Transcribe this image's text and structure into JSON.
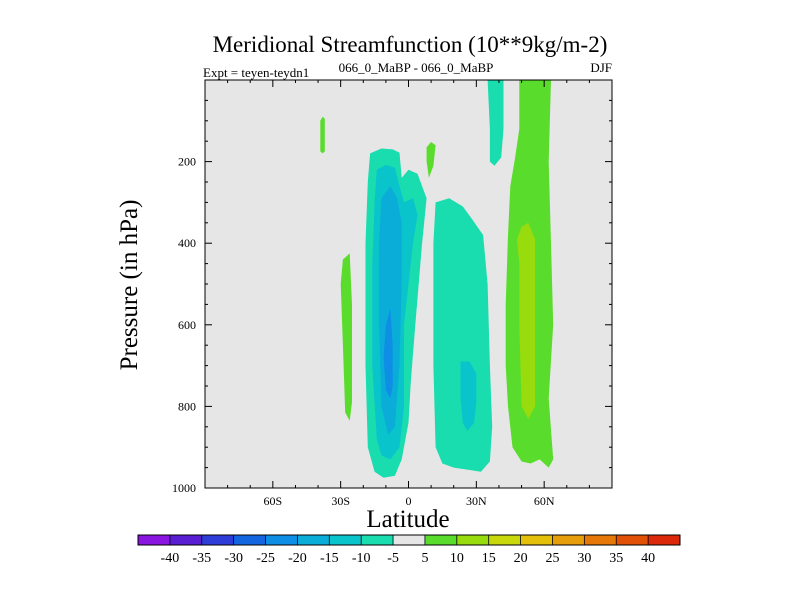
{
  "chart_data": {
    "type": "contour",
    "title": "Meridional Streamfunction (10**9kg/m-2)",
    "left_label": "Expt = teyen-teydn1",
    "center_label": "066_0_MaBP - 066_0_MaBP",
    "right_label": "DJF",
    "xlabel": "Latitude",
    "ylabel": "Pressure (in hPa)",
    "xlim": [
      -90,
      90
    ],
    "ylim": [
      1000,
      0
    ],
    "x_ticks": [
      {
        "value": -60,
        "label": "60S"
      },
      {
        "value": -30,
        "label": "30S"
      },
      {
        "value": 0,
        "label": "0"
      },
      {
        "value": 30,
        "label": "30N"
      },
      {
        "value": 60,
        "label": "60N"
      }
    ],
    "y_ticks": [
      {
        "value": 200,
        "label": "200"
      },
      {
        "value": 400,
        "label": "400"
      },
      {
        "value": 600,
        "label": "600"
      },
      {
        "value": 800,
        "label": "800"
      },
      {
        "value": 1000,
        "label": "1000"
      }
    ],
    "background_color": "#e6e6e6",
    "colorbar": {
      "labels": [
        "-40",
        "-35",
        "-30",
        "-25",
        "-20",
        "-15",
        "-10",
        "-5",
        "5",
        "10",
        "15",
        "20",
        "25",
        "30",
        "35",
        "40"
      ],
      "colors": [
        "#8a14e0",
        "#5a1ed2",
        "#2f3dd8",
        "#1466e0",
        "#0f8ee6",
        "#0aadd8",
        "#0ac4cc",
        "#19dcaf",
        "#e6e6e6",
        "#5adc2d",
        "#98dc0e",
        "#c8d80a",
        "#e4c00a",
        "#e69e0a",
        "#e6780a",
        "#e25008",
        "#dc280a"
      ]
    },
    "regions": [
      {
        "name": "sh-upper-green-blob",
        "level": "5",
        "color": "#5adc2d",
        "points": [
          [
            -38,
            90
          ],
          [
            -37,
            95
          ],
          [
            -37,
            175
          ],
          [
            -38,
            180
          ],
          [
            -39,
            175
          ],
          [
            -39,
            100
          ]
        ]
      },
      {
        "name": "sh-midlevel-green-band",
        "level": "5",
        "color": "#5adc2d",
        "points": [
          [
            -29,
            440
          ],
          [
            -26,
            425
          ],
          [
            -25,
            550
          ],
          [
            -25,
            790
          ],
          [
            -26,
            835
          ],
          [
            -28,
            815
          ],
          [
            -29,
            650
          ],
          [
            -30,
            500
          ]
        ]
      },
      {
        "name": "tropical-upper-green-blob",
        "level": "5",
        "color": "#5adc2d",
        "points": [
          [
            10,
            152
          ],
          [
            12,
            160
          ],
          [
            11,
            210
          ],
          [
            9,
            240
          ],
          [
            8,
            200
          ],
          [
            8,
            165
          ]
        ]
      },
      {
        "name": "nh-descending-green-cell",
        "level": "5",
        "color": "#5adc2d",
        "points": [
          [
            42,
            0
          ],
          [
            49,
            0
          ],
          [
            49,
            120
          ],
          [
            47,
            195
          ],
          [
            45,
            260
          ],
          [
            44,
            380
          ],
          [
            43,
            550
          ],
          [
            43,
            700
          ],
          [
            44,
            800
          ],
          [
            46,
            900
          ],
          [
            50,
            935
          ],
          [
            54,
            940
          ],
          [
            58,
            930
          ],
          [
            62,
            950
          ],
          [
            64,
            930
          ],
          [
            62,
            780
          ],
          [
            64,
            600
          ],
          [
            63,
            400
          ],
          [
            62,
            200
          ],
          [
            63,
            0
          ],
          [
            64,
            0
          ],
          [
            64,
            0
          ]
        ]
      },
      {
        "name": "nh-descending-core",
        "level": "10",
        "color": "#98dc0e",
        "points": [
          [
            48,
            390
          ],
          [
            50,
            360
          ],
          [
            53,
            350
          ],
          [
            56,
            390
          ],
          [
            56,
            600
          ],
          [
            56,
            800
          ],
          [
            53,
            830
          ],
          [
            50,
            800
          ],
          [
            49,
            600
          ],
          [
            49,
            450
          ]
        ]
      },
      {
        "name": "nh-upper-teal-strip",
        "level": "-5",
        "color": "#19dcaf",
        "points": [
          [
            35,
            0
          ],
          [
            42,
            0
          ],
          [
            42,
            120
          ],
          [
            41,
            190
          ],
          [
            38,
            210
          ],
          [
            36,
            200
          ],
          [
            36,
            120
          ]
        ]
      },
      {
        "name": "nh-midlevel-teal-cell",
        "level": "-5",
        "color": "#19dcaf",
        "points": [
          [
            12,
            300
          ],
          [
            18,
            290
          ],
          [
            24,
            310
          ],
          [
            28,
            340
          ],
          [
            33,
            380
          ],
          [
            35,
            500
          ],
          [
            36,
            700
          ],
          [
            37,
            850
          ],
          [
            36,
            935
          ],
          [
            32,
            960
          ],
          [
            26,
            955
          ],
          [
            20,
            950
          ],
          [
            15,
            940
          ],
          [
            12,
            900
          ],
          [
            11,
            700
          ],
          [
            11,
            400
          ]
        ]
      },
      {
        "name": "nh-lower-teal-core",
        "level": "-10",
        "color": "#0ac4cc",
        "points": [
          [
            23,
            690
          ],
          [
            27,
            690
          ],
          [
            30,
            720
          ],
          [
            30,
            790
          ],
          [
            29,
            840
          ],
          [
            26,
            860
          ],
          [
            24,
            840
          ],
          [
            23,
            780
          ]
        ]
      },
      {
        "name": "sh-tropical-teal-cell",
        "level": "-5",
        "color": "#19dcaf",
        "points": [
          [
            -17,
            180
          ],
          [
            -12,
            168
          ],
          [
            -7,
            170
          ],
          [
            -4,
            178
          ],
          [
            -3,
            240
          ],
          [
            0,
            220
          ],
          [
            4,
            230
          ],
          [
            8,
            290
          ],
          [
            6,
            400
          ],
          [
            3,
            600
          ],
          [
            1,
            740
          ],
          [
            0,
            840
          ],
          [
            -3,
            930
          ],
          [
            -6,
            970
          ],
          [
            -11,
            975
          ],
          [
            -15,
            960
          ],
          [
            -18,
            900
          ],
          [
            -19,
            700
          ],
          [
            -19,
            400
          ],
          [
            -18,
            250
          ]
        ]
      },
      {
        "name": "sh-tropical-cyan-core",
        "level": "-10",
        "color": "#0ac4cc",
        "points": [
          [
            -14,
            220
          ],
          [
            -10,
            208
          ],
          [
            -6,
            215
          ],
          [
            -4,
            260
          ],
          [
            -2,
            300
          ],
          [
            2,
            290
          ],
          [
            4,
            330
          ],
          [
            2,
            400
          ],
          [
            0,
            500
          ],
          [
            -2,
            600
          ],
          [
            -2,
            800
          ],
          [
            -4,
            900
          ],
          [
            -8,
            930
          ],
          [
            -12,
            920
          ],
          [
            -14,
            880
          ],
          [
            -16,
            700
          ],
          [
            -16,
            450
          ],
          [
            -15,
            300
          ]
        ]
      },
      {
        "name": "sh-tropical-mid-core",
        "level": "-15",
        "color": "#0aadd8",
        "points": [
          [
            -12,
            290
          ],
          [
            -8,
            260
          ],
          [
            -5,
            290
          ],
          [
            -3,
            350
          ],
          [
            -3,
            500
          ],
          [
            -4,
            700
          ],
          [
            -6,
            850
          ],
          [
            -9,
            870
          ],
          [
            -12,
            800
          ],
          [
            -13,
            600
          ],
          [
            -13,
            400
          ]
        ]
      },
      {
        "name": "sh-tropical-deep-core",
        "level": "-20",
        "color": "#0f8ee6",
        "points": [
          [
            -10,
            600
          ],
          [
            -8,
            560
          ],
          [
            -7,
            650
          ],
          [
            -7,
            750
          ],
          [
            -8,
            780
          ],
          [
            -10,
            760
          ],
          [
            -11,
            680
          ]
        ]
      }
    ]
  }
}
